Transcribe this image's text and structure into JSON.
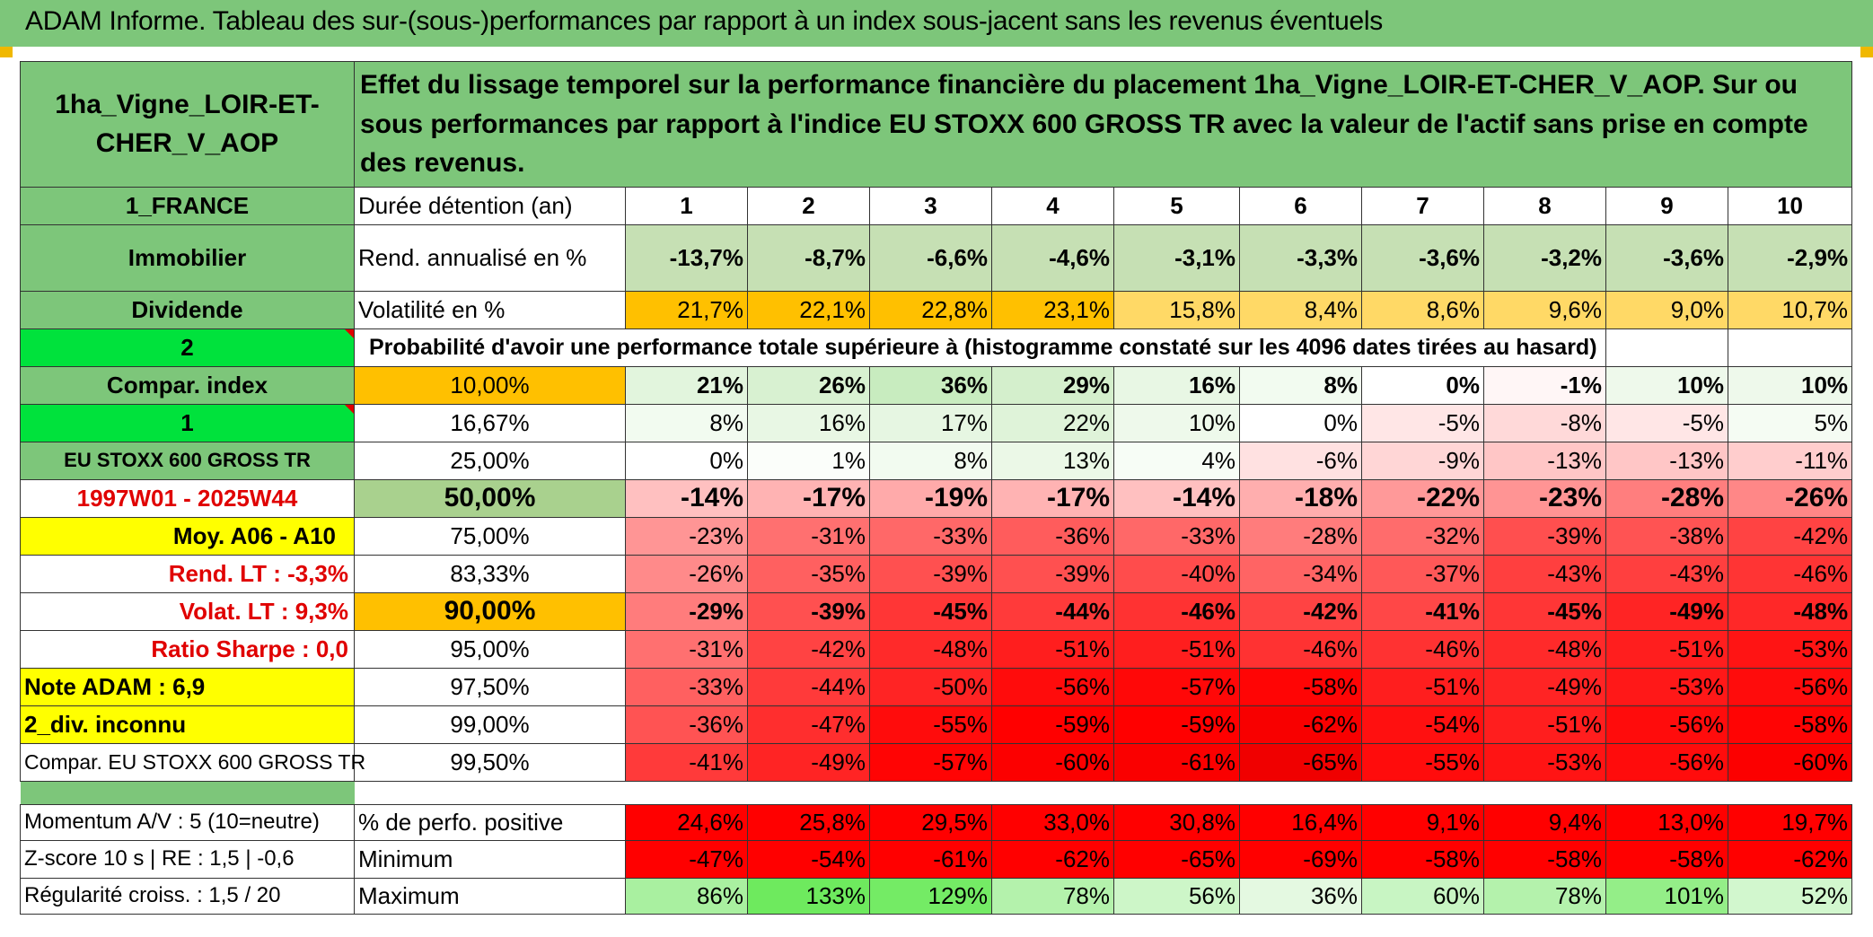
{
  "title": "ADAM Informe. Tableau des sur-(sous-)performances par rapport à un index sous-jacent sans les revenus éventuels",
  "left": {
    "asset_name": "1ha_Vigne_LOIR-ET-CHER_V_AOP",
    "country": "1_FRANCE",
    "category": "Immobilier",
    "type": "Dividende",
    "num1": "2",
    "compar_label": "Compar. index",
    "num2": "1",
    "index_name": "EU STOXX 600 GROSS TR",
    "period": "1997W01 - 2025W44",
    "moy": "Moy. A06 - A10",
    "rend_lt": "Rend. LT :   -3,3%",
    "volat_lt": "Volat. LT :   9,3%",
    "sharpe": "Ratio Sharpe :    0,0",
    "note": "Note ADAM : 6,9",
    "div": "2_div. inconnu",
    "compar_full": "Compar. EU STOXX 600 GROSS TR"
  },
  "header_text": "Effet du lissage temporel sur la performance financière du placement 1ha_Vigne_LOIR-ET-CHER_V_AOP. Sur ou sous performances par rapport à l'indice EU STOXX 600 GROSS TR avec la valeur de l'actif sans prise en compte des revenus.",
  "duree_label": "Durée détention (an)",
  "years": [
    "1",
    "2",
    "3",
    "4",
    "5",
    "6",
    "7",
    "8",
    "9",
    "10"
  ],
  "rend_label": "Rend. annualisé en %",
  "rend": [
    "-13,7%",
    "-8,7%",
    "-6,6%",
    "-4,6%",
    "-3,1%",
    "-3,3%",
    "-3,6%",
    "-3,2%",
    "-3,6%",
    "-2,9%"
  ],
  "vol_label": "Volatilité en %",
  "vol": [
    "21,7%",
    "22,1%",
    "22,8%",
    "23,1%",
    "15,8%",
    "8,4%",
    "8,6%",
    "9,6%",
    "9,0%",
    "10,7%"
  ],
  "prob_title": "Probabilité d'avoir une performance totale supérieure à (histogramme constaté sur les 4096 dates tirées au hasard)",
  "prob_rows": [
    {
      "p": "10,00%",
      "v": [
        "21%",
        "26%",
        "36%",
        "29%",
        "16%",
        "8%",
        "0%",
        "-1%",
        "10%",
        "10%"
      ]
    },
    {
      "p": "16,67%",
      "v": [
        "8%",
        "16%",
        "17%",
        "22%",
        "10%",
        "0%",
        "-5%",
        "-8%",
        "-5%",
        "5%"
      ]
    },
    {
      "p": "25,00%",
      "v": [
        "0%",
        "1%",
        "8%",
        "13%",
        "4%",
        "-6%",
        "-9%",
        "-13%",
        "-13%",
        "-11%"
      ]
    },
    {
      "p": "50,00%",
      "v": [
        "-14%",
        "-17%",
        "-19%",
        "-17%",
        "-14%",
        "-18%",
        "-22%",
        "-23%",
        "-28%",
        "-26%"
      ]
    },
    {
      "p": "75,00%",
      "v": [
        "-23%",
        "-31%",
        "-33%",
        "-36%",
        "-33%",
        "-28%",
        "-32%",
        "-39%",
        "-38%",
        "-42%"
      ]
    },
    {
      "p": "83,33%",
      "v": [
        "-26%",
        "-35%",
        "-39%",
        "-39%",
        "-40%",
        "-34%",
        "-37%",
        "-43%",
        "-43%",
        "-46%"
      ]
    },
    {
      "p": "90,00%",
      "v": [
        "-29%",
        "-39%",
        "-45%",
        "-44%",
        "-46%",
        "-42%",
        "-41%",
        "-45%",
        "-49%",
        "-48%"
      ]
    },
    {
      "p": "95,00%",
      "v": [
        "-31%",
        "-42%",
        "-48%",
        "-51%",
        "-51%",
        "-46%",
        "-46%",
        "-48%",
        "-51%",
        "-53%"
      ]
    },
    {
      "p": "97,50%",
      "v": [
        "-33%",
        "-44%",
        "-50%",
        "-56%",
        "-57%",
        "-58%",
        "-51%",
        "-49%",
        "-53%",
        "-56%"
      ]
    },
    {
      "p": "99,00%",
      "v": [
        "-36%",
        "-47%",
        "-55%",
        "-59%",
        "-59%",
        "-62%",
        "-54%",
        "-51%",
        "-56%",
        "-58%"
      ]
    },
    {
      "p": "99,50%",
      "v": [
        "-41%",
        "-49%",
        "-57%",
        "-60%",
        "-61%",
        "-65%",
        "-55%",
        "-53%",
        "-56%",
        "-60%"
      ]
    }
  ],
  "bottom": [
    {
      "left": "Momentum A/V : 5 (10=neutre)",
      "label": "% de perfo. positive",
      "v": [
        "24,6%",
        "25,8%",
        "29,5%",
        "33,0%",
        "30,8%",
        "16,4%",
        "9,1%",
        "9,4%",
        "13,0%",
        "19,7%"
      ]
    },
    {
      "left": "Z-score 10 s | RE : 1,5 | -0,6",
      "label": "Minimum",
      "v": [
        "-47%",
        "-54%",
        "-61%",
        "-62%",
        "-65%",
        "-69%",
        "-58%",
        "-58%",
        "-58%",
        "-62%"
      ]
    },
    {
      "left": "Régularité croiss. : 1,5 / 20",
      "label": "Maximum",
      "v": [
        "86%",
        "133%",
        "129%",
        "78%",
        "56%",
        "36%",
        "60%",
        "78%",
        "101%",
        "52%"
      ]
    }
  ]
}
